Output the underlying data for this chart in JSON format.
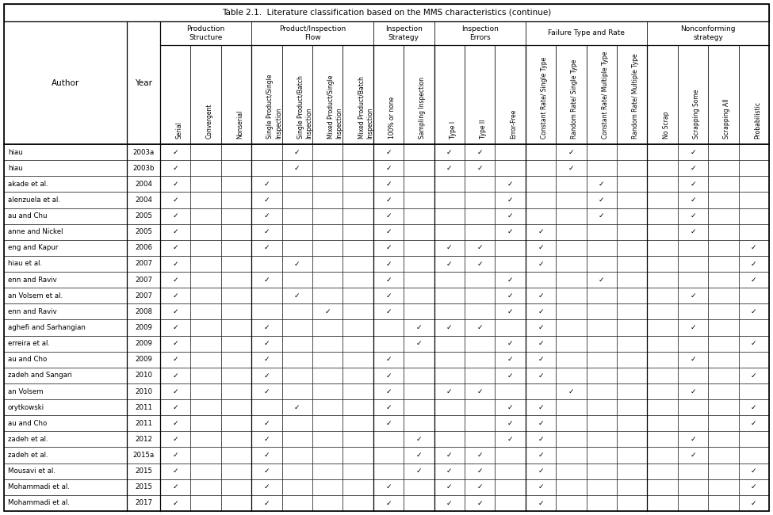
{
  "title": "Table 2.1.  Literature classification based on the MMS characteristics (continue)",
  "authors": [
    "hiau",
    "hiau",
    "akade et al.",
    "alenzuela et al.",
    "au and Chu",
    "anne and Nickel",
    "eng and Kapur",
    "hiau et al.",
    "enn and Raviv",
    "an Volsem et al.",
    "enn and Raviv",
    "aghefi and Sarhangian",
    "erreira et al.",
    "au and Cho",
    "zadeh and Sangari",
    "an Volsem",
    "orytkowski",
    "au and Cho",
    "zadeh et al.",
    "zadeh et al.",
    "Mousavi et al.",
    "Mohammadi et al.",
    "Mohammadi et al."
  ],
  "years": [
    "2003a",
    "2003b",
    "2004",
    "2004",
    "2005",
    "2005",
    "2006",
    "2007",
    "2007",
    "2007",
    "2008",
    "2009",
    "2009",
    "2009",
    "2010",
    "2010",
    "2011",
    "2011",
    "2012",
    "2015a",
    "2015",
    "2015",
    "2017"
  ],
  "group_names": [
    "Production\nStructure",
    "Product/Inspection\nFlow",
    "Inspection\nStrategy",
    "Inspection\nErrors",
    "Failure Type and Rate",
    "Nonconforming\nstrategy"
  ],
  "group_col_counts": [
    3,
    4,
    2,
    3,
    4,
    4
  ],
  "col_headers": [
    "Serial",
    "Convergent",
    "Nonserial",
    "Single Product/Single\nInspection",
    "Single Product/Batch\nInspection",
    "Mixed Product/Single\nInspection",
    "Mixed Product/Batch\nInspection",
    "100% or none",
    "Sampling Inspection",
    "Type I",
    "Type II",
    "Error-Free",
    "Constant Rate/ Single Type",
    "Random Rate/ Single Type",
    "Constant Rate/ Multiple Type",
    "Random Rate/ Multiple Type",
    "No Scrap",
    "Scrapping Some",
    "Scrapping All",
    "Probabilistic"
  ],
  "checks": [
    [
      1,
      0,
      0,
      0,
      1,
      0,
      0,
      1,
      0,
      1,
      1,
      0,
      0,
      1,
      0,
      0,
      0,
      1,
      0,
      0
    ],
    [
      1,
      0,
      0,
      0,
      1,
      0,
      0,
      1,
      0,
      1,
      1,
      0,
      0,
      1,
      0,
      0,
      0,
      1,
      0,
      0
    ],
    [
      1,
      0,
      0,
      1,
      0,
      0,
      0,
      1,
      0,
      0,
      0,
      1,
      0,
      0,
      1,
      0,
      0,
      1,
      0,
      0
    ],
    [
      1,
      0,
      0,
      1,
      0,
      0,
      0,
      1,
      0,
      0,
      0,
      1,
      0,
      0,
      1,
      0,
      0,
      1,
      0,
      0
    ],
    [
      1,
      0,
      0,
      1,
      0,
      0,
      0,
      1,
      0,
      0,
      0,
      1,
      0,
      0,
      1,
      0,
      0,
      1,
      0,
      0
    ],
    [
      1,
      0,
      0,
      1,
      0,
      0,
      0,
      1,
      0,
      0,
      0,
      1,
      1,
      0,
      0,
      0,
      0,
      1,
      0,
      0
    ],
    [
      1,
      0,
      0,
      1,
      0,
      0,
      0,
      1,
      0,
      1,
      1,
      0,
      1,
      0,
      0,
      0,
      0,
      0,
      0,
      1
    ],
    [
      1,
      0,
      0,
      0,
      1,
      0,
      0,
      1,
      0,
      1,
      1,
      0,
      1,
      0,
      0,
      0,
      0,
      0,
      0,
      1
    ],
    [
      1,
      0,
      0,
      1,
      0,
      0,
      0,
      1,
      0,
      0,
      0,
      1,
      0,
      0,
      1,
      0,
      0,
      0,
      0,
      1
    ],
    [
      1,
      0,
      0,
      0,
      1,
      0,
      0,
      1,
      0,
      0,
      0,
      1,
      1,
      0,
      0,
      0,
      0,
      1,
      0,
      0
    ],
    [
      1,
      0,
      0,
      0,
      0,
      1,
      0,
      1,
      0,
      0,
      0,
      1,
      1,
      0,
      0,
      0,
      0,
      0,
      0,
      1
    ],
    [
      1,
      0,
      0,
      1,
      0,
      0,
      0,
      0,
      1,
      1,
      1,
      0,
      1,
      0,
      0,
      0,
      0,
      1,
      0,
      0
    ],
    [
      1,
      0,
      0,
      1,
      0,
      0,
      0,
      0,
      1,
      0,
      0,
      1,
      1,
      0,
      0,
      0,
      0,
      0,
      0,
      1
    ],
    [
      1,
      0,
      0,
      1,
      0,
      0,
      0,
      1,
      0,
      0,
      0,
      1,
      1,
      0,
      0,
      0,
      0,
      1,
      0,
      0
    ],
    [
      1,
      0,
      0,
      1,
      0,
      0,
      0,
      1,
      0,
      0,
      0,
      1,
      1,
      0,
      0,
      0,
      0,
      0,
      0,
      1
    ],
    [
      1,
      0,
      0,
      1,
      0,
      0,
      0,
      1,
      0,
      1,
      1,
      0,
      0,
      1,
      0,
      0,
      0,
      1,
      0,
      0
    ],
    [
      1,
      0,
      0,
      0,
      1,
      0,
      0,
      1,
      0,
      0,
      0,
      1,
      1,
      0,
      0,
      0,
      0,
      0,
      0,
      1
    ],
    [
      1,
      0,
      0,
      1,
      0,
      0,
      0,
      1,
      0,
      0,
      0,
      1,
      1,
      0,
      0,
      0,
      0,
      0,
      0,
      1
    ],
    [
      1,
      0,
      0,
      1,
      0,
      0,
      0,
      0,
      1,
      0,
      0,
      1,
      1,
      0,
      0,
      0,
      0,
      1,
      0,
      0
    ],
    [
      1,
      0,
      0,
      1,
      0,
      0,
      0,
      0,
      1,
      1,
      1,
      0,
      1,
      0,
      0,
      0,
      0,
      1,
      0,
      0
    ],
    [
      1,
      0,
      0,
      1,
      0,
      0,
      0,
      0,
      1,
      1,
      1,
      0,
      1,
      0,
      0,
      0,
      0,
      0,
      0,
      1
    ],
    [
      1,
      0,
      0,
      1,
      0,
      0,
      0,
      1,
      0,
      1,
      1,
      0,
      1,
      0,
      0,
      0,
      0,
      0,
      0,
      1
    ],
    [
      1,
      0,
      0,
      1,
      0,
      0,
      0,
      1,
      0,
      1,
      1,
      0,
      1,
      0,
      0,
      0,
      0,
      0,
      0,
      1
    ]
  ],
  "bg_color": "white",
  "line_color": "black",
  "text_color": "black"
}
